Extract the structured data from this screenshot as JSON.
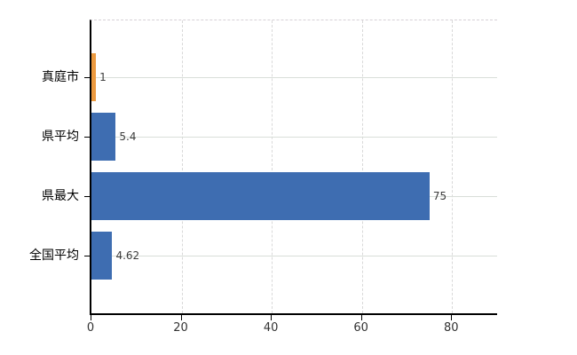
{
  "chart_data": {
    "type": "bar",
    "orientation": "horizontal",
    "title": "",
    "categories": [
      "真庭市",
      "県平均",
      "県最大",
      "全国平均"
    ],
    "values": [
      1,
      5.4,
      75,
      4.62
    ],
    "value_labels": [
      "1",
      "5.4",
      "75",
      "4.62"
    ],
    "bar_colors": [
      "#ec9a40",
      "#3e6db1",
      "#3e6db1",
      "#3e6db1"
    ],
    "xlim": [
      0,
      90
    ],
    "x_ticks": [
      0,
      20,
      40,
      60,
      80
    ],
    "x_tick_labels": [
      "0",
      "20",
      "40",
      "60",
      "80"
    ],
    "grid": true,
    "legend": "none",
    "colors": {
      "bar_blue": "#3e6db1",
      "bar_orange": "#ec9a40",
      "axis": "#000000",
      "horizontal_gridline": "#d9ded9",
      "vertical_gridline": "#d9d9d9",
      "top_border": "#d6d0d6",
      "background": "#ffffff",
      "tick_label": "#333333",
      "value_label": "#3c3c3c"
    }
  }
}
